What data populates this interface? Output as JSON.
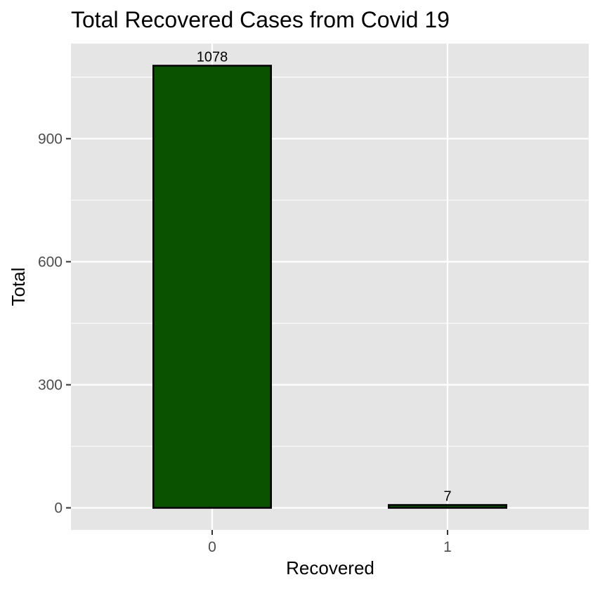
{
  "chart_data": {
    "type": "bar",
    "title": "Total Recovered Cases from Covid 19",
    "xlabel": "Recovered",
    "ylabel": "Total",
    "categories": [
      "0",
      "1"
    ],
    "values": [
      1078,
      7
    ],
    "data_labels": [
      "1078",
      "7"
    ],
    "y_ticks": [
      0,
      300,
      600,
      900
    ],
    "y_tick_labels": [
      "0",
      "300",
      "600",
      "900"
    ],
    "ylim": [
      -53.9,
      1131.9
    ],
    "grid": true,
    "legend": "none",
    "colors": {
      "bar_fill": "#0b5200",
      "bar_outline": "#000000",
      "panel_background": "#e5e5e5",
      "grid_major": "#ffffff",
      "tick_text": "#4d4d4d"
    }
  }
}
